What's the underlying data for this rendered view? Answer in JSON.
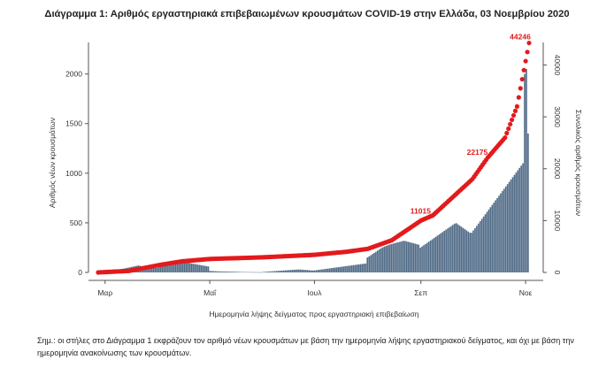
{
  "title": "Διάγραμμα 1: Αριθμός εργαστηριακά επιβεβαιωμένων κρουσμάτων COVID-19 στην Ελλάδα, 03 Νοεμβρίου 2020",
  "footnote": "Σημ.: οι στήλες στο Διάγραμμα 1 εκφράζουν τον αριθμό νέων κρουσμάτων με βάση την ημερομηνία λήψης εργαστηριακού δείγματος, και όχι με βάση την ημερομηνία ανακοίνωσης των κρουσμάτων.",
  "colors": {
    "bars": "#4f6a86",
    "cumulative": "#e31a1c",
    "axis": "#555555"
  },
  "chart_data": {
    "type": "bar",
    "title": "Διάγραμμα 1: Αριθμός εργαστηριακά επιβεβαιωμένων κρουσμάτων COVID-19 στην Ελλάδα, 03 Νοεμβρίου 2020",
    "xlabel": "Ημερομηνία λήψης δείγματος προς εργαστηριακή επιβεβαίωση",
    "ylabel": "Αριθμός νέων κρουσμάτων",
    "y2label": "Συνολικός αριθμός κρουσμάτων",
    "ylim": [
      0,
      2300
    ],
    "y2lim": [
      0,
      44000
    ],
    "yticks": [
      "0",
      "500",
      "1000",
      "1500",
      "2000"
    ],
    "y2ticks": [
      "0",
      "10000",
      "20000",
      "30000",
      "40000"
    ],
    "xticks": [
      "Μαρ",
      "Μαΐ",
      "Ιουλ",
      "Σεπ",
      "Νοε"
    ],
    "grid": false,
    "date_start": "2020-02-26",
    "date_end": "2020-11-03",
    "monthly_daily_cases": [
      {
        "month": "2020-03",
        "values": [
          5,
          10,
          20,
          30,
          40,
          50,
          60,
          70,
          60,
          55,
          50,
          45
        ]
      },
      {
        "month": "2020-04",
        "values": [
          80,
          90,
          100,
          110,
          120,
          100,
          90,
          80,
          70,
          60
        ]
      },
      {
        "month": "2020-05",
        "values": [
          15,
          10,
          8,
          5,
          3,
          2
        ]
      },
      {
        "month": "2020-06",
        "values": [
          5,
          10,
          15,
          20,
          25,
          30,
          25,
          20
        ]
      },
      {
        "month": "2020-07",
        "values": [
          20,
          30,
          40,
          50,
          60,
          70,
          80,
          90
        ]
      },
      {
        "month": "2020-08",
        "values": [
          150,
          200,
          250,
          280,
          300,
          320,
          300,
          280
        ]
      },
      {
        "month": "2020-09",
        "values": [
          250,
          300,
          350,
          400,
          450,
          500,
          450,
          400
        ]
      },
      {
        "month": "2020-10",
        "values": [
          400,
          500,
          600,
          700,
          800,
          900,
          1000,
          1100
        ]
      },
      {
        "month": "2020-11",
        "values": [
          2000,
          2300,
          1800,
          1400
        ]
      }
    ],
    "cumulative": {
      "name": "",
      "labels": [
        {
          "text": "11015",
          "value": 11015
        },
        {
          "text": "22175",
          "value": 22175
        },
        {
          "text": "44246",
          "value": 44246
        }
      ],
      "points": [
        {
          "date": "2020-02-26",
          "value": 0
        },
        {
          "date": "2020-03-15",
          "value": 300
        },
        {
          "date": "2020-04-01",
          "value": 1400
        },
        {
          "date": "2020-04-15",
          "value": 2150
        },
        {
          "date": "2020-05-01",
          "value": 2600
        },
        {
          "date": "2020-06-01",
          "value": 2920
        },
        {
          "date": "2020-07-01",
          "value": 3400
        },
        {
          "date": "2020-07-20",
          "value": 4000
        },
        {
          "date": "2020-08-01",
          "value": 4550
        },
        {
          "date": "2020-08-15",
          "value": 6200
        },
        {
          "date": "2020-09-01",
          "value": 10000
        },
        {
          "date": "2020-09-08",
          "value": 11015
        },
        {
          "date": "2020-10-01",
          "value": 18000
        },
        {
          "date": "2020-10-10",
          "value": 22175
        },
        {
          "date": "2020-10-20",
          "value": 26000
        },
        {
          "date": "2020-10-27",
          "value": 32000
        },
        {
          "date": "2020-11-03",
          "value": 44246
        }
      ]
    }
  }
}
